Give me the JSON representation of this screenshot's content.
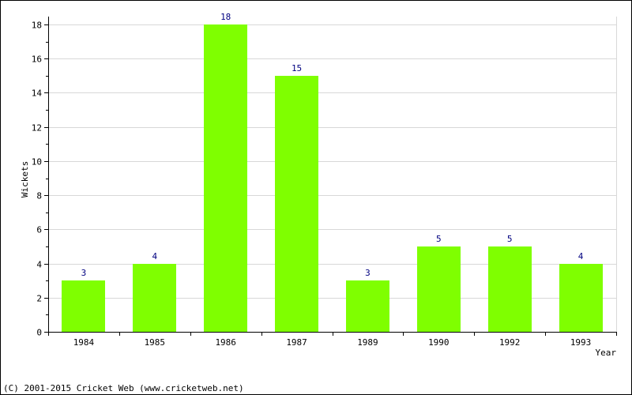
{
  "chart_data": {
    "type": "bar",
    "categories": [
      "1984",
      "1985",
      "1986",
      "1987",
      "1989",
      "1990",
      "1992",
      "1993"
    ],
    "values": [
      3,
      4,
      18,
      15,
      3,
      5,
      5,
      4
    ],
    "title": "",
    "xlabel": "Year",
    "ylabel": "Wickets",
    "ylim": [
      0,
      18
    ],
    "yticks": [
      0,
      2,
      4,
      6,
      8,
      10,
      12,
      14,
      16,
      18
    ],
    "grid": true,
    "legend": "none",
    "bar_color": "#7fff00",
    "label_color": "#000080",
    "grid_color": "#d8d8d8"
  },
  "footer": {
    "copyright": "(C) 2001-2015 Cricket Web (www.cricketweb.net)"
  }
}
